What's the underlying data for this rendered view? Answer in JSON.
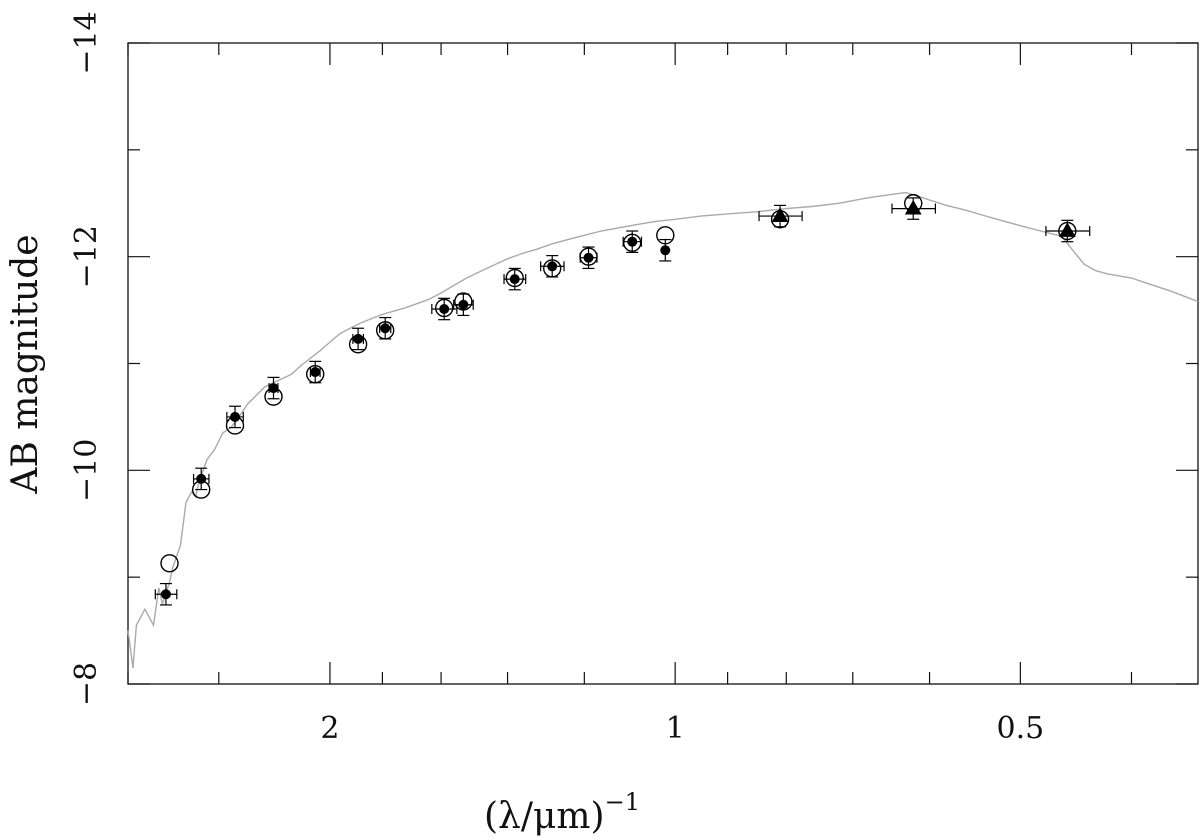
{
  "chart_data": {
    "type": "scatter",
    "xlabel": "(λ/μm)",
    "xlabel_exponent": "−1",
    "ylabel": "AB magnitude",
    "x_scale": "log (1/λ)",
    "xlim": [
      3.0,
      0.35
    ],
    "ylim": [
      -8,
      -14
    ],
    "y_ticks": [
      {
        "v": -8,
        "label": "−8"
      },
      {
        "v": -10,
        "label": "−10"
      },
      {
        "v": -12,
        "label": "−12"
      },
      {
        "v": -14,
        "label": "−14"
      }
    ],
    "y_minor_ticks": [
      -9,
      -11,
      -13
    ],
    "x_ticks": [
      {
        "v": 2,
        "label": "2"
      },
      {
        "v": 1,
        "label": "1"
      },
      {
        "v": 0.5,
        "label": "0.5"
      }
    ],
    "x_minor_ticks": [
      3,
      2.5,
      1.8,
      1.6,
      1.4,
      1.2,
      0.9,
      0.8,
      0.7,
      0.6,
      0.4
    ],
    "colors": {
      "model": "#aaaaaa",
      "points": "#000000"
    },
    "series": [
      {
        "marker": "filled-circle",
        "points": [
          {
            "x": 2.78,
            "y": -8.84,
            "xerr": 0.06,
            "yerr": 0.1
          },
          {
            "x": 2.59,
            "y": -9.92,
            "xerr": 0.04,
            "yerr": 0.1
          },
          {
            "x": 2.42,
            "y": -10.5,
            "xerr": 0.04,
            "yerr": 0.1
          },
          {
            "x": 2.24,
            "y": -10.77,
            "xerr": 0.02,
            "yerr": 0.1
          },
          {
            "x": 2.06,
            "y": -10.92,
            "xerr": 0.02,
            "yerr": 0.1
          },
          {
            "x": 1.89,
            "y": -11.23,
            "xerr": 0.02,
            "yerr": 0.1
          },
          {
            "x": 1.79,
            "y": -11.33,
            "xerr": 0.02,
            "yerr": 0.1
          },
          {
            "x": 1.59,
            "y": -11.51,
            "xerr": 0.04,
            "yerr": 0.1
          },
          {
            "x": 1.53,
            "y": -11.55,
            "xerr": 0.03,
            "yerr": 0.1
          },
          {
            "x": 1.38,
            "y": -11.79,
            "xerr": 0.03,
            "yerr": 0.1
          },
          {
            "x": 1.28,
            "y": -11.91,
            "xerr": 0.03,
            "yerr": 0.1
          },
          {
            "x": 1.19,
            "y": -11.99,
            "xerr": 0.02,
            "yerr": 0.1
          },
          {
            "x": 1.09,
            "y": -12.14,
            "xerr": 0.02,
            "yerr": 0.1
          },
          {
            "x": 1.02,
            "y": -12.06,
            "xerr": 0.0,
            "yerr": 0.1
          }
        ]
      },
      {
        "marker": "open-circle",
        "points": [
          {
            "x": 2.76,
            "y": -9.13
          },
          {
            "x": 2.59,
            "y": -9.82
          },
          {
            "x": 2.42,
            "y": -10.42
          },
          {
            "x": 2.24,
            "y": -10.69
          },
          {
            "x": 2.06,
            "y": -10.9
          },
          {
            "x": 1.89,
            "y": -11.18
          },
          {
            "x": 1.79,
            "y": -11.31
          },
          {
            "x": 1.59,
            "y": -11.52
          },
          {
            "x": 1.53,
            "y": -11.58
          },
          {
            "x": 1.38,
            "y": -11.8
          },
          {
            "x": 1.28,
            "y": -11.89
          },
          {
            "x": 1.19,
            "y": -12.0
          },
          {
            "x": 1.09,
            "y": -12.13
          },
          {
            "x": 1.02,
            "y": -12.2
          },
          {
            "x": 0.81,
            "y": -12.35
          },
          {
            "x": 0.62,
            "y": -12.5
          },
          {
            "x": 0.455,
            "y": -12.24
          }
        ]
      },
      {
        "marker": "filled-triangle",
        "points": [
          {
            "x": 0.81,
            "y": -12.38,
            "xerr": 0.035,
            "yerr": 0.1
          },
          {
            "x": 0.62,
            "y": -12.45,
            "xerr": 0.027,
            "yerr": 0.1
          },
          {
            "x": 0.455,
            "y": -12.24,
            "xerr": 0.02,
            "yerr": 0.1
          }
        ]
      }
    ],
    "model_spectrum": {
      "x": [
        3.0,
        2.97,
        2.95,
        2.9,
        2.85,
        2.82,
        2.8,
        2.78,
        2.76,
        2.74,
        2.7,
        2.67,
        2.64,
        2.62,
        2.6,
        2.56,
        2.52,
        2.48,
        2.44,
        2.4,
        2.36,
        2.32,
        2.28,
        2.24,
        2.2,
        2.16,
        2.12,
        2.08,
        2.04,
        2.0,
        1.96,
        1.92,
        1.88,
        1.84,
        1.8,
        1.76,
        1.72,
        1.68,
        1.64,
        1.6,
        1.56,
        1.52,
        1.48,
        1.44,
        1.4,
        1.36,
        1.32,
        1.28,
        1.24,
        1.2,
        1.16,
        1.12,
        1.08,
        1.04,
        1.0,
        0.95,
        0.9,
        0.85,
        0.8,
        0.76,
        0.72,
        0.68,
        0.65,
        0.63,
        0.62,
        0.6,
        0.58,
        0.56,
        0.54,
        0.52,
        0.5,
        0.48,
        0.46,
        0.45,
        0.44,
        0.43,
        0.42,
        0.41,
        0.4,
        0.39,
        0.38,
        0.37,
        0.36,
        0.35
      ],
      "y": [
        -8.5,
        -8.15,
        -8.55,
        -8.7,
        -8.55,
        -8.9,
        -8.75,
        -8.85,
        -8.95,
        -9.1,
        -9.3,
        -9.7,
        -9.8,
        -9.75,
        -9.9,
        -10.1,
        -10.2,
        -10.35,
        -10.4,
        -10.5,
        -10.62,
        -10.7,
        -10.78,
        -10.82,
        -10.86,
        -10.9,
        -10.98,
        -11.05,
        -11.12,
        -11.2,
        -11.28,
        -11.33,
        -11.38,
        -11.42,
        -11.46,
        -11.49,
        -11.52,
        -11.56,
        -11.6,
        -11.66,
        -11.73,
        -11.8,
        -11.86,
        -11.92,
        -11.98,
        -12.03,
        -12.07,
        -12.12,
        -12.16,
        -12.2,
        -12.24,
        -12.27,
        -12.3,
        -12.33,
        -12.35,
        -12.38,
        -12.4,
        -12.42,
        -12.45,
        -12.47,
        -12.5,
        -12.55,
        -12.58,
        -12.6,
        -12.58,
        -12.53,
        -12.48,
        -12.44,
        -12.39,
        -12.34,
        -12.29,
        -12.24,
        -12.19,
        -12.06,
        -11.93,
        -11.87,
        -11.84,
        -11.82,
        -11.8,
        -11.76,
        -11.72,
        -11.68,
        -11.63,
        -11.58
      ]
    }
  }
}
